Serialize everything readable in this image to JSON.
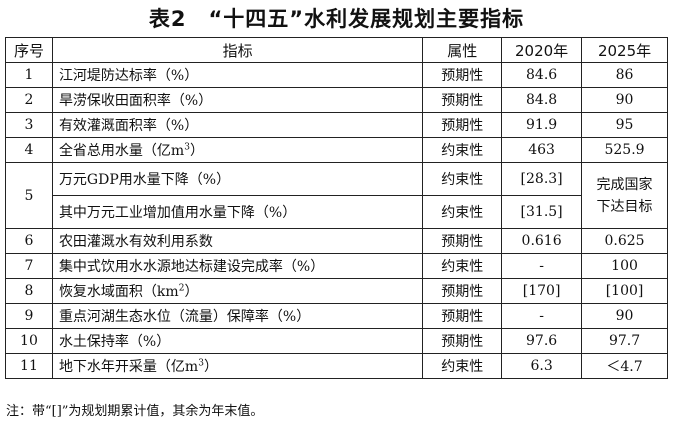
{
  "title": "表2　“十四五”水利发展规划主要指标",
  "headers": [
    "序号",
    "指标",
    "属性",
    "2020年",
    "2025年"
  ],
  "rows": [
    {
      "no": "1",
      "indicator": "江河堤防达标率（%）",
      "attr": "预期性",
      "y2020": "84.6",
      "y2025": "86"
    },
    {
      "no": "2",
      "indicator": "旱涝保收田面积率（%）",
      "attr": "预期性",
      "y2020": "84.8",
      "y2025": "90"
    },
    {
      "no": "3",
      "indicator": "有效灌溉面积率（%）",
      "attr": "预期性",
      "y2020": "91.9",
      "y2025": "95"
    },
    {
      "no": "4",
      "indicator": "全省总用水量（亿m",
      "sup": "3",
      "indicator_end": "）",
      "attr": "约束性",
      "y2020": "463",
      "y2025": "525.9"
    },
    {
      "no": "5",
      "indicator": "万元GDP用水量下降（%）",
      "attr": "约束性",
      "y2020": "[28.3]",
      "y2025_line1": "完成国家",
      "y2025_line2": "下达目标",
      "sub_indicator": "其中万元工业增加值用水量下降（%）",
      "sub_attr": "约束性",
      "sub_y2020": "[31.5]"
    },
    {
      "no": "6",
      "indicator": "农田灌溉水有效利用系数",
      "attr": "预期性",
      "y2020": "0.616",
      "y2025": "0.625"
    },
    {
      "no": "7",
      "indicator": "集中式饮用水水源地达标建设完成率（%）",
      "attr": "约束性",
      "y2020": "-",
      "y2025": "100"
    },
    {
      "no": "8",
      "indicator": "恢复水域面积（km",
      "sup": "2",
      "indicator_end": "）",
      "attr": "预期性",
      "y2020": "[170]",
      "y2025": "[100]"
    },
    {
      "no": "9",
      "indicator": "重点河湖生态水位（流量）保障率（%）",
      "attr": "预期性",
      "y2020": "-",
      "y2025": "90"
    },
    {
      "no": "10",
      "indicator": "水土保持率（%）",
      "attr": "预期性",
      "y2020": "97.6",
      "y2025": "97.7"
    },
    {
      "no": "11",
      "indicator": "地下水年开采量（亿m",
      "sup": "3",
      "indicator_end": "）",
      "attr": "约束性",
      "y2020": "6.3",
      "y2025": "＜4.7"
    }
  ],
  "note": "注：带“[]”为规划期累计值，其余为年末值。"
}
